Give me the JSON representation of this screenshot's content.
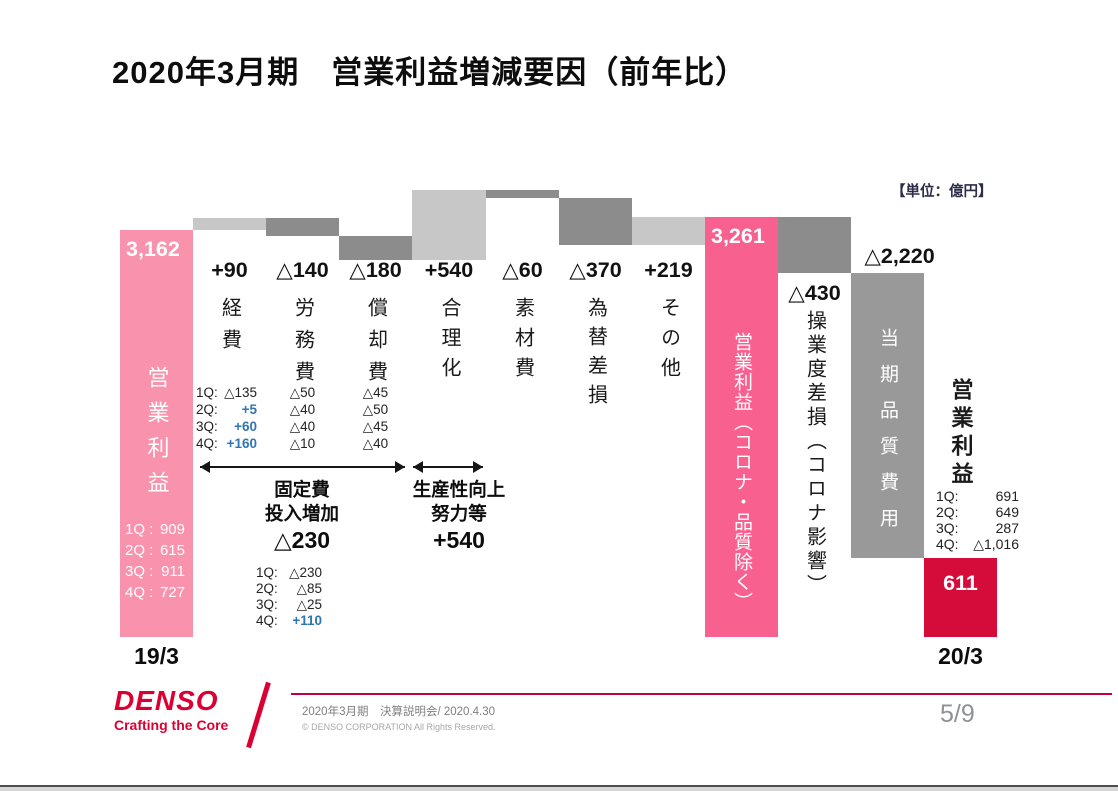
{
  "title": "2020年3月期　営業利益増減要因（前年比）",
  "unit_label": "【単位：億円】",
  "colors": {
    "pink_light": "#F992AC",
    "pink": "#F8618F",
    "red": "#D50C39",
    "gain_gray": "#C7C7C7",
    "loss_gray": "#8C8C8C",
    "loss_gray_light": "#999999",
    "blue": "#2E75B6",
    "brand_red": "#DC0032"
  },
  "chart_data": {
    "type": "waterfall",
    "unit": "億円",
    "title": "営業利益増減要因（前年比）",
    "baseline_labels": [
      "19/3",
      "20/3"
    ],
    "columns": [
      {
        "name": "営業利益",
        "kind": "total",
        "value": 3162,
        "value_label": "3,162",
        "from": 0,
        "to": 3162,
        "color": "pink_light",
        "xlabel": "19/3",
        "quarters": [
          {
            "q": "1Q :",
            "v": "909"
          },
          {
            "q": "2Q :",
            "v": "615"
          },
          {
            "q": "3Q :",
            "v": "911"
          },
          {
            "q": "4Q :",
            "v": "727"
          }
        ]
      },
      {
        "name": "経費",
        "kind": "increase",
        "value": 90,
        "value_label": "+90",
        "from": 3162,
        "to": 3252,
        "color": "gain_gray",
        "quarters": [
          {
            "q": "1Q:",
            "v": "△135"
          },
          {
            "q": "2Q:",
            "v": "+5",
            "blue": true
          },
          {
            "q": "3Q:",
            "v": "+60",
            "blue": true
          },
          {
            "q": "4Q:",
            "v": "+160",
            "blue": true
          }
        ]
      },
      {
        "name": "労務費",
        "kind": "decrease",
        "value": -140,
        "value_label": "△140",
        "from": 3252,
        "to": 3112,
        "color": "loss_gray",
        "quarters": [
          {
            "v": "△50"
          },
          {
            "v": "△40"
          },
          {
            "v": "△40"
          },
          {
            "v": "△10"
          }
        ]
      },
      {
        "name": "償却費",
        "kind": "decrease",
        "value": -180,
        "value_label": "△180",
        "from": 3112,
        "to": 2932,
        "color": "loss_gray",
        "quarters": [
          {
            "v": "△45"
          },
          {
            "v": "△50"
          },
          {
            "v": "△45"
          },
          {
            "v": "△40"
          }
        ]
      },
      {
        "name": "合理化",
        "kind": "increase",
        "value": 540,
        "value_label": "+540",
        "from": 2932,
        "to": 3472,
        "color": "gain_gray"
      },
      {
        "name": "素材費",
        "kind": "decrease",
        "value": -60,
        "value_label": "△60",
        "from": 3472,
        "to": 3412,
        "color": "loss_gray"
      },
      {
        "name": "為替差損",
        "kind": "decrease",
        "value": -370,
        "value_label": "△370",
        "from": 3412,
        "to": 3042,
        "color": "loss_gray"
      },
      {
        "name": "その他",
        "kind": "increase",
        "value": 219,
        "value_label": "+219",
        "from": 3042,
        "to": 3261,
        "color": "gain_gray"
      },
      {
        "name": "営業利益（コロナ・品質除く）",
        "kind": "total",
        "value": 3261,
        "value_label": "3,261",
        "from": 0,
        "to": 3261,
        "color": "pink"
      },
      {
        "name": "操業度差損（コロナ影響）",
        "kind": "decrease",
        "value": -430,
        "value_label": "△430",
        "from": 3261,
        "to": 2831,
        "color": "loss_gray"
      },
      {
        "name": "当期品質費用",
        "kind": "decrease",
        "value": -2220,
        "value_label": "△2,220",
        "from": 2831,
        "to": 611,
        "color": "loss_gray_light"
      },
      {
        "name": "営業利益",
        "kind": "total",
        "value": 611,
        "value_label": "611",
        "from": 0,
        "to": 611,
        "color": "red",
        "xlabel": "20/3",
        "quarters": [
          {
            "q": "1Q:",
            "v": "691"
          },
          {
            "q": "2Q:",
            "v": "649"
          },
          {
            "q": "3Q:",
            "v": "287"
          },
          {
            "q": "4Q:",
            "v": "△1,016"
          }
        ]
      }
    ],
    "annotations": [
      {
        "lines": [
          "固定費",
          "投入増加"
        ],
        "total": "△230",
        "quarters": [
          {
            "q": "1Q:",
            "v": "△230"
          },
          {
            "q": "2Q:",
            "v": "△85"
          },
          {
            "q": "3Q:",
            "v": "△25"
          },
          {
            "q": "4Q:",
            "v": "+110",
            "blue": true
          }
        ]
      },
      {
        "lines": [
          "生産性向上",
          "努力等"
        ],
        "total": "+540"
      }
    ]
  },
  "footer": {
    "logo": "DENSO",
    "tagline": "Crafting the Core",
    "event": "2020年3月期　決算説明会/ 2020.4.30",
    "copyright": "© DENSO CORPORATION All Rights Reserved.",
    "page": "5/9"
  }
}
